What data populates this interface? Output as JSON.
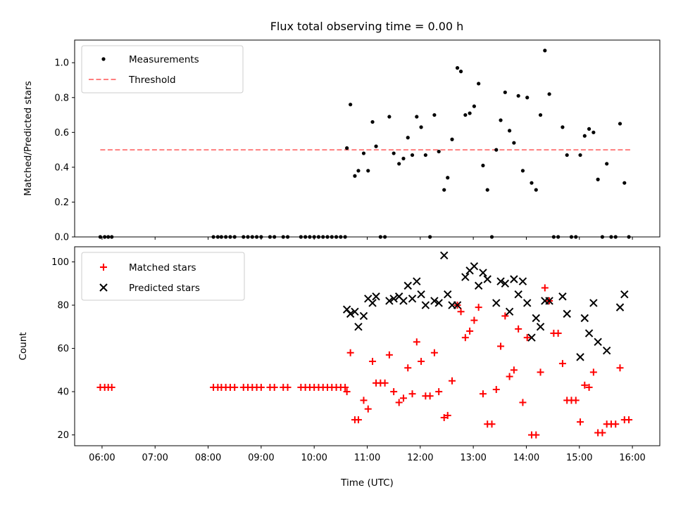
{
  "chart_data": [
    {
      "panel": "top",
      "type": "scatter",
      "title": "Flux total observing time = 0.00 h",
      "xlabel": "",
      "ylabel": "Matched/Predicted stars",
      "ylim": [
        0,
        1.13
      ],
      "yticks": [
        0.0,
        0.2,
        0.4,
        0.6,
        0.8,
        1.0
      ],
      "ytick_labels": [
        "0.0",
        "0.2",
        "0.4",
        "0.6",
        "0.8",
        "1.0"
      ],
      "legend": {
        "placement": "upper-left",
        "entries": [
          "Measurements",
          "Threshold"
        ]
      },
      "threshold": {
        "name": "Threshold",
        "y": 0.5,
        "x_start": "05:58",
        "x_end": "15:58",
        "color": "#ff7f7f",
        "style": "dashed"
      },
      "series": [
        {
          "name": "Measurements",
          "marker": "dot",
          "color": "#000000",
          "points": [
            [
              "05:58",
              0
            ],
            [
              "06:03",
              0
            ],
            [
              "06:07",
              0
            ],
            [
              "06:11",
              0
            ],
            [
              "08:06",
              0
            ],
            [
              "08:11",
              0
            ],
            [
              "08:15",
              0
            ],
            [
              "08:20",
              0
            ],
            [
              "08:25",
              0
            ],
            [
              "08:30",
              0
            ],
            [
              "08:40",
              0
            ],
            [
              "08:45",
              0
            ],
            [
              "08:50",
              0
            ],
            [
              "08:55",
              0
            ],
            [
              "09:00",
              0
            ],
            [
              "09:10",
              0
            ],
            [
              "09:15",
              0
            ],
            [
              "09:25",
              0
            ],
            [
              "09:30",
              0
            ],
            [
              "09:45",
              0
            ],
            [
              "09:50",
              0
            ],
            [
              "09:55",
              0
            ],
            [
              "10:00",
              0
            ],
            [
              "10:05",
              0
            ],
            [
              "10:10",
              0
            ],
            [
              "10:15",
              0
            ],
            [
              "10:20",
              0
            ],
            [
              "10:25",
              0
            ],
            [
              "10:30",
              0
            ],
            [
              "10:35",
              0
            ],
            [
              "10:37",
              0.51
            ],
            [
              "10:41",
              0.76
            ],
            [
              "10:46",
              0.35
            ],
            [
              "10:50",
              0.38
            ],
            [
              "10:56",
              0.48
            ],
            [
              "11:01",
              0.38
            ],
            [
              "11:06",
              0.66
            ],
            [
              "11:10",
              0.52
            ],
            [
              "11:15",
              0
            ],
            [
              "11:20",
              0
            ],
            [
              "11:25",
              0.69
            ],
            [
              "11:30",
              0.48
            ],
            [
              "11:36",
              0.42
            ],
            [
              "11:41",
              0.45
            ],
            [
              "11:46",
              0.57
            ],
            [
              "11:51",
              0.47
            ],
            [
              "11:56",
              0.69
            ],
            [
              "12:01",
              0.63
            ],
            [
              "12:06",
              0.47
            ],
            [
              "12:11",
              0
            ],
            [
              "12:16",
              0.7
            ],
            [
              "12:21",
              0.49
            ],
            [
              "12:27",
              0.27
            ],
            [
              "12:31",
              0.34
            ],
            [
              "12:36",
              0.56
            ],
            [
              "12:42",
              0.97
            ],
            [
              "12:46",
              0.95
            ],
            [
              "12:51",
              0.7
            ],
            [
              "12:56",
              0.71
            ],
            [
              "13:01",
              0.75
            ],
            [
              "13:06",
              0.88
            ],
            [
              "13:11",
              0.41
            ],
            [
              "13:16",
              0.27
            ],
            [
              "13:21",
              0
            ],
            [
              "13:26",
              0.5
            ],
            [
              "13:31",
              0.67
            ],
            [
              "13:36",
              0.83
            ],
            [
              "13:41",
              0.61
            ],
            [
              "13:46",
              0.54
            ],
            [
              "13:51",
              0.81
            ],
            [
              "13:56",
              0.38
            ],
            [
              "14:01",
              0.8
            ],
            [
              "14:06",
              0.31
            ],
            [
              "14:11",
              0.27
            ],
            [
              "14:16",
              0.7
            ],
            [
              "14:21",
              1.07
            ],
            [
              "14:26",
              0.82
            ],
            [
              "14:31",
              0
            ],
            [
              "14:36",
              0
            ],
            [
              "14:41",
              0.63
            ],
            [
              "14:46",
              0.47
            ],
            [
              "14:51",
              0
            ],
            [
              "14:56",
              0
            ],
            [
              "15:01",
              0.47
            ],
            [
              "15:06",
              0.58
            ],
            [
              "15:11",
              0.62
            ],
            [
              "15:16",
              0.6
            ],
            [
              "15:21",
              0.33
            ],
            [
              "15:26",
              0
            ],
            [
              "15:31",
              0.42
            ],
            [
              "15:36",
              0
            ],
            [
              "15:41",
              0
            ],
            [
              "15:46",
              0.65
            ],
            [
              "15:51",
              0.31
            ],
            [
              "15:56",
              0
            ]
          ]
        }
      ]
    },
    {
      "panel": "bottom",
      "type": "scatter",
      "title": "",
      "xlabel": "Time (UTC)",
      "ylabel": "Count",
      "ylim": [
        15,
        107
      ],
      "yticks": [
        20,
        40,
        60,
        80,
        100
      ],
      "xticks": [
        "06:00",
        "07:00",
        "08:00",
        "09:00",
        "10:00",
        "11:00",
        "12:00",
        "13:00",
        "14:00",
        "15:00",
        "16:00"
      ],
      "xlim": [
        "05:29",
        "16:31"
      ],
      "legend": {
        "placement": "upper-left",
        "entries": [
          "Matched stars",
          "Predicted stars"
        ]
      },
      "series": [
        {
          "name": "Matched stars",
          "marker": "plus",
          "color": "#ff0000",
          "points": [
            [
              "05:58",
              42
            ],
            [
              "06:03",
              42
            ],
            [
              "06:07",
              42
            ],
            [
              "06:11",
              42
            ],
            [
              "08:06",
              42
            ],
            [
              "08:11",
              42
            ],
            [
              "08:15",
              42
            ],
            [
              "08:20",
              42
            ],
            [
              "08:25",
              42
            ],
            [
              "08:30",
              42
            ],
            [
              "08:40",
              42
            ],
            [
              "08:45",
              42
            ],
            [
              "08:50",
              42
            ],
            [
              "08:55",
              42
            ],
            [
              "09:00",
              42
            ],
            [
              "09:10",
              42
            ],
            [
              "09:15",
              42
            ],
            [
              "09:25",
              42
            ],
            [
              "09:30",
              42
            ],
            [
              "09:45",
              42
            ],
            [
              "09:50",
              42
            ],
            [
              "09:55",
              42
            ],
            [
              "10:00",
              42
            ],
            [
              "10:05",
              42
            ],
            [
              "10:10",
              42
            ],
            [
              "10:15",
              42
            ],
            [
              "10:20",
              42
            ],
            [
              "10:25",
              42
            ],
            [
              "10:30",
              42
            ],
            [
              "10:35",
              42
            ],
            [
              "10:37",
              40
            ],
            [
              "10:41",
              58
            ],
            [
              "10:46",
              27
            ],
            [
              "10:50",
              27
            ],
            [
              "10:56",
              36
            ],
            [
              "11:01",
              32
            ],
            [
              "11:06",
              54
            ],
            [
              "11:10",
              44
            ],
            [
              "11:15",
              44
            ],
            [
              "11:20",
              44
            ],
            [
              "11:25",
              57
            ],
            [
              "11:30",
              40
            ],
            [
              "11:36",
              35
            ],
            [
              "11:41",
              37
            ],
            [
              "11:46",
              51
            ],
            [
              "11:51",
              39
            ],
            [
              "11:56",
              63
            ],
            [
              "12:01",
              54
            ],
            [
              "12:06",
              38
            ],
            [
              "12:11",
              38
            ],
            [
              "12:16",
              58
            ],
            [
              "12:21",
              40
            ],
            [
              "12:27",
              28
            ],
            [
              "12:31",
              29
            ],
            [
              "12:36",
              45
            ],
            [
              "12:42",
              80
            ],
            [
              "12:46",
              77
            ],
            [
              "12:51",
              65
            ],
            [
              "12:56",
              68
            ],
            [
              "13:01",
              73
            ],
            [
              "13:06",
              79
            ],
            [
              "13:11",
              39
            ],
            [
              "13:16",
              25
            ],
            [
              "13:21",
              25
            ],
            [
              "13:26",
              41
            ],
            [
              "13:31",
              61
            ],
            [
              "13:36",
              75
            ],
            [
              "13:41",
              47
            ],
            [
              "13:46",
              50
            ],
            [
              "13:51",
              69
            ],
            [
              "13:56",
              35
            ],
            [
              "14:01",
              65
            ],
            [
              "14:06",
              20
            ],
            [
              "14:11",
              20
            ],
            [
              "14:16",
              49
            ],
            [
              "14:21",
              88
            ],
            [
              "14:26",
              82
            ],
            [
              "14:31",
              67
            ],
            [
              "14:36",
              67
            ],
            [
              "14:41",
              53
            ],
            [
              "14:46",
              36
            ],
            [
              "14:51",
              36
            ],
            [
              "14:56",
              36
            ],
            [
              "15:01",
              26
            ],
            [
              "15:06",
              43
            ],
            [
              "15:11",
              42
            ],
            [
              "15:16",
              49
            ],
            [
              "15:21",
              21
            ],
            [
              "15:26",
              21
            ],
            [
              "15:31",
              25
            ],
            [
              "15:36",
              25
            ],
            [
              "15:41",
              25
            ],
            [
              "15:46",
              51
            ],
            [
              "15:51",
              27
            ],
            [
              "15:56",
              27
            ]
          ]
        },
        {
          "name": "Predicted stars",
          "marker": "x",
          "color": "#000000",
          "points": [
            [
              "10:37",
              78
            ],
            [
              "10:41",
              76
            ],
            [
              "10:46",
              77
            ],
            [
              "10:50",
              70
            ],
            [
              "10:56",
              75
            ],
            [
              "11:01",
              83
            ],
            [
              "11:06",
              81
            ],
            [
              "11:10",
              84
            ],
            [
              "11:25",
              82
            ],
            [
              "11:30",
              83
            ],
            [
              "11:36",
              84
            ],
            [
              "11:41",
              82
            ],
            [
              "11:46",
              89
            ],
            [
              "11:51",
              83
            ],
            [
              "11:56",
              91
            ],
            [
              "12:01",
              85
            ],
            [
              "12:06",
              80
            ],
            [
              "12:16",
              82
            ],
            [
              "12:21",
              81
            ],
            [
              "12:27",
              103
            ],
            [
              "12:31",
              85
            ],
            [
              "12:36",
              80
            ],
            [
              "12:42",
              80
            ],
            [
              "12:51",
              93
            ],
            [
              "12:56",
              96
            ],
            [
              "13:01",
              98
            ],
            [
              "13:06",
              89
            ],
            [
              "13:11",
              95
            ],
            [
              "13:16",
              92
            ],
            [
              "13:26",
              81
            ],
            [
              "13:31",
              91
            ],
            [
              "13:36",
              90
            ],
            [
              "13:41",
              77
            ],
            [
              "13:46",
              92
            ],
            [
              "13:51",
              85
            ],
            [
              "13:56",
              91
            ],
            [
              "14:01",
              81
            ],
            [
              "14:06",
              65
            ],
            [
              "14:11",
              74
            ],
            [
              "14:16",
              70
            ],
            [
              "14:21",
              82
            ],
            [
              "14:26",
              82
            ],
            [
              "14:41",
              84
            ],
            [
              "14:46",
              76
            ],
            [
              "15:01",
              56
            ],
            [
              "15:06",
              74
            ],
            [
              "15:11",
              67
            ],
            [
              "15:16",
              81
            ],
            [
              "15:21",
              63
            ],
            [
              "15:31",
              59
            ],
            [
              "15:46",
              79
            ],
            [
              "15:51",
              85
            ]
          ]
        }
      ]
    }
  ]
}
